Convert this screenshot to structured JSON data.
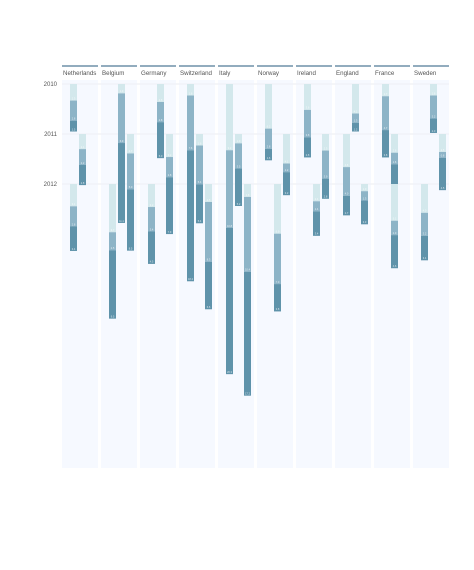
{
  "chart_data": {
    "type": "bar",
    "orientation": "vertical-stacked-downward",
    "years": [
      "2010",
      "2011",
      "2012"
    ],
    "segments": [
      "light",
      "mid",
      "dark"
    ],
    "colors": {
      "light": "#d3e8ec",
      "mid": "#8db4c7",
      "dark": "#5f93aa",
      "panel_bg": "#f6f9ff",
      "header_line": "#6f90a8",
      "grid": "#e4e8ee",
      "text": "#555555"
    },
    "value_max": 38,
    "countries": [
      {
        "name": "Netherlands",
        "bars": [
          {
            "year": "2010",
            "x": 1,
            "values": [
              2.3,
              2.8,
              1.5
            ]
          },
          {
            "year": "2011",
            "x": 2,
            "values": [
              2.1,
              2.2,
              2.8
            ]
          },
          {
            "year": "2012",
            "x": 1,
            "values": [
              3.1,
              2.8,
              3.4
            ]
          }
        ]
      },
      {
        "name": "Belgium",
        "bars": [
          {
            "year": "2010",
            "x": 2,
            "values": [
              1.3,
              6.9,
              11.1
            ]
          },
          {
            "year": "2011",
            "x": 3,
            "values": [
              2.7,
              5.0,
              8.5
            ]
          },
          {
            "year": "2012",
            "x": 1,
            "values": [
              6.7,
              2.5,
              9.5
            ]
          }
        ]
      },
      {
        "name": "Germany",
        "bars": [
          {
            "year": "2010",
            "x": 2,
            "values": [
              2.5,
              2.8,
              5.0
            ]
          },
          {
            "year": "2011",
            "x": 3,
            "values": [
              3.2,
              2.8,
              7.9
            ]
          },
          {
            "year": "2012",
            "x": 1,
            "values": [
              3.2,
              3.4,
              4.5
            ]
          }
        ]
      },
      {
        "name": "Switzerland",
        "bars": [
          {
            "year": "2010",
            "x": 1,
            "values": [
              1.6,
              7.6,
              18.2
            ]
          },
          {
            "year": "2011",
            "x": 2,
            "values": [
              1.6,
              5.4,
              5.4
            ]
          },
          {
            "year": "2012",
            "x": 3,
            "values": [
              2.5,
              8.3,
              6.6
            ]
          }
        ]
      },
      {
        "name": "Italy",
        "bars": [
          {
            "year": "2010",
            "x": 1,
            "values": [
              9.2,
              10.8,
              20.3
            ]
          },
          {
            "year": "2011",
            "x": 2,
            "values": [
              1.3,
              3.5,
              5.2
            ]
          },
          {
            "year": "2012",
            "x": 3,
            "values": [
              1.8,
              10.4,
              17.2
            ]
          }
        ]
      },
      {
        "name": "Norway",
        "bars": [
          {
            "year": "2010",
            "x": 1,
            "values": [
              6.2,
              2.8,
              1.6
            ]
          },
          {
            "year": "2011",
            "x": 3,
            "values": [
              4.1,
              1.2,
              3.2
            ]
          },
          {
            "year": "2012",
            "x": 2,
            "values": [
              6.9,
              7.0,
              3.8
            ]
          }
        ]
      },
      {
        "name": "Ireland",
        "bars": [
          {
            "year": "2010",
            "x": 1,
            "values": [
              3.6,
              3.8,
              2.8
            ]
          },
          {
            "year": "2011",
            "x": 3,
            "values": [
              2.3,
              3.9,
              2.8
            ]
          },
          {
            "year": "2012",
            "x": 2,
            "values": [
              2.4,
              1.4,
              3.4
            ]
          }
        ]
      },
      {
        "name": "England",
        "bars": [
          {
            "year": "2010",
            "x": 2,
            "values": [
              4.1,
              1.3,
              1.2
            ]
          },
          {
            "year": "2011",
            "x": 1,
            "values": [
              4.6,
              4.0,
              2.7
            ]
          },
          {
            "year": "2012",
            "x": 3,
            "values": [
              1.0,
              1.3,
              3.3
            ]
          }
        ]
      },
      {
        "name": "France",
        "bars": [
          {
            "year": "2010",
            "x": 1,
            "values": [
              1.7,
              4.7,
              3.8
            ]
          },
          {
            "year": "2011",
            "x": 2,
            "values": [
              2.6,
              1.6,
              6.0
            ]
          },
          {
            "year": "2012",
            "x": 2,
            "values": [
              5.1,
              2.0,
              4.6
            ]
          }
        ]
      },
      {
        "name": "Sweden",
        "bars": [
          {
            "year": "2010",
            "x": 2,
            "values": [
              1.6,
              3.2,
              2.0
            ]
          },
          {
            "year": "2011",
            "x": 3,
            "values": [
              2.5,
              0.8,
              4.5
            ]
          },
          {
            "year": "2012",
            "x": 1,
            "values": [
              4.0,
              3.2,
              3.4
            ]
          }
        ]
      }
    ]
  }
}
